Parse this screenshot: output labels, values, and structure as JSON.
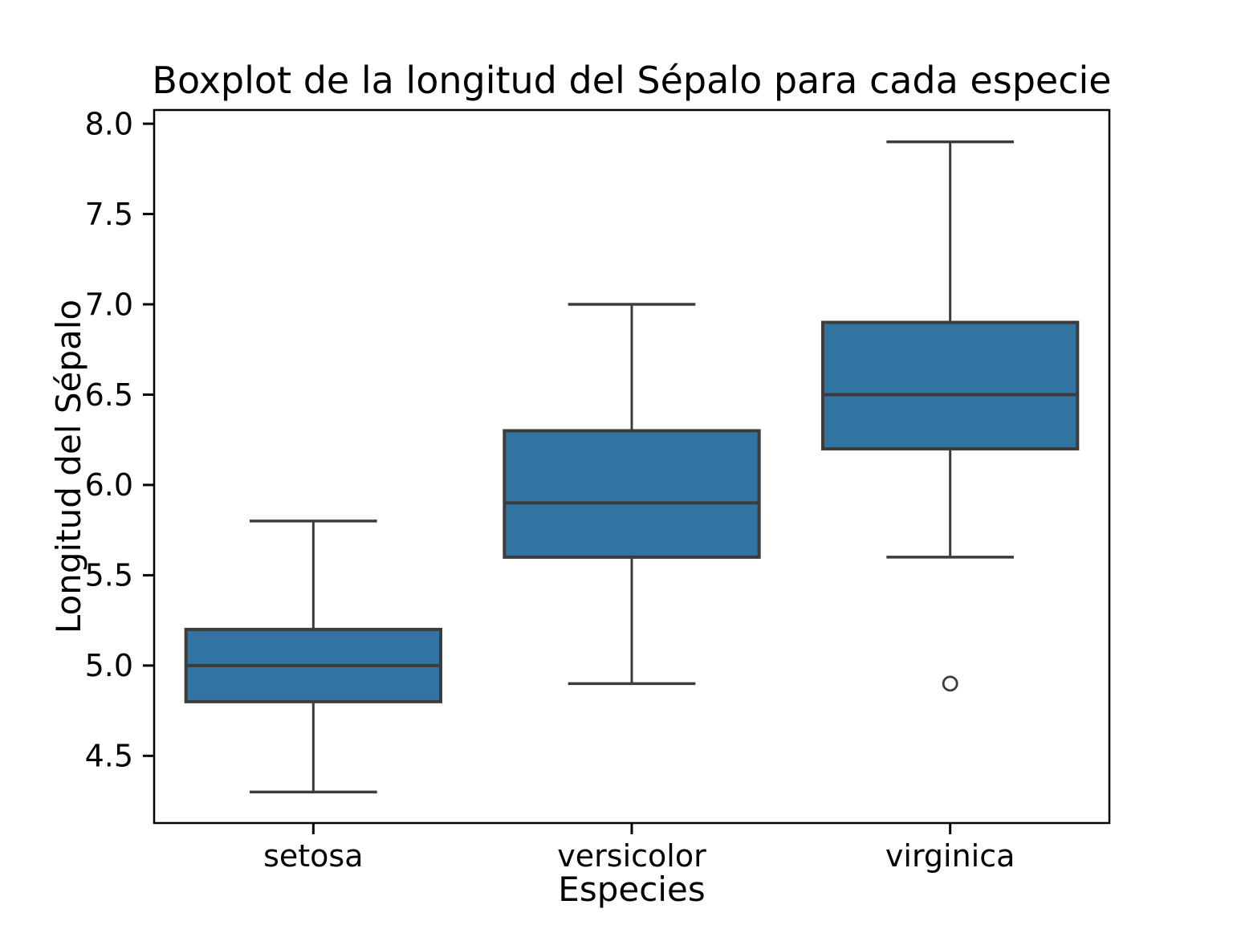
{
  "chart_data": {
    "type": "boxplot",
    "title": "Boxplot de la longitud del Sépalo para cada especie",
    "xlabel": "Especies",
    "ylabel": "Longitud del Sépalo",
    "categories": [
      "setosa",
      "versicolor",
      "virginica"
    ],
    "series": [
      {
        "name": "setosa",
        "whisker_low": 4.3,
        "q1": 4.8,
        "median": 5.0,
        "q3": 5.2,
        "whisker_high": 5.8,
        "outliers": []
      },
      {
        "name": "versicolor",
        "whisker_low": 4.9,
        "q1": 5.6,
        "median": 5.9,
        "q3": 6.3,
        "whisker_high": 7.0,
        "outliers": []
      },
      {
        "name": "virginica",
        "whisker_low": 5.6,
        "q1": 6.2,
        "median": 6.5,
        "q3": 6.9,
        "whisker_high": 7.9,
        "outliers": [
          4.9
        ]
      }
    ],
    "yticks": [
      4.5,
      5.0,
      5.5,
      6.0,
      6.5,
      7.0,
      7.5,
      8.0
    ],
    "ylim": [
      4.128,
      8.076
    ],
    "xlim": [
      -0.5,
      2.5
    ],
    "box_width": 0.8,
    "grid": false,
    "legend_position": "none",
    "colors": {
      "box_fill": "#3274a1",
      "box_edge": "#3c3c3c",
      "whisker": "#3c3c3c",
      "median": "#3c3c3c",
      "outlier_edge": "#3c3c3c",
      "spine": "#000000",
      "tick": "#000000",
      "text": "#000000"
    }
  }
}
